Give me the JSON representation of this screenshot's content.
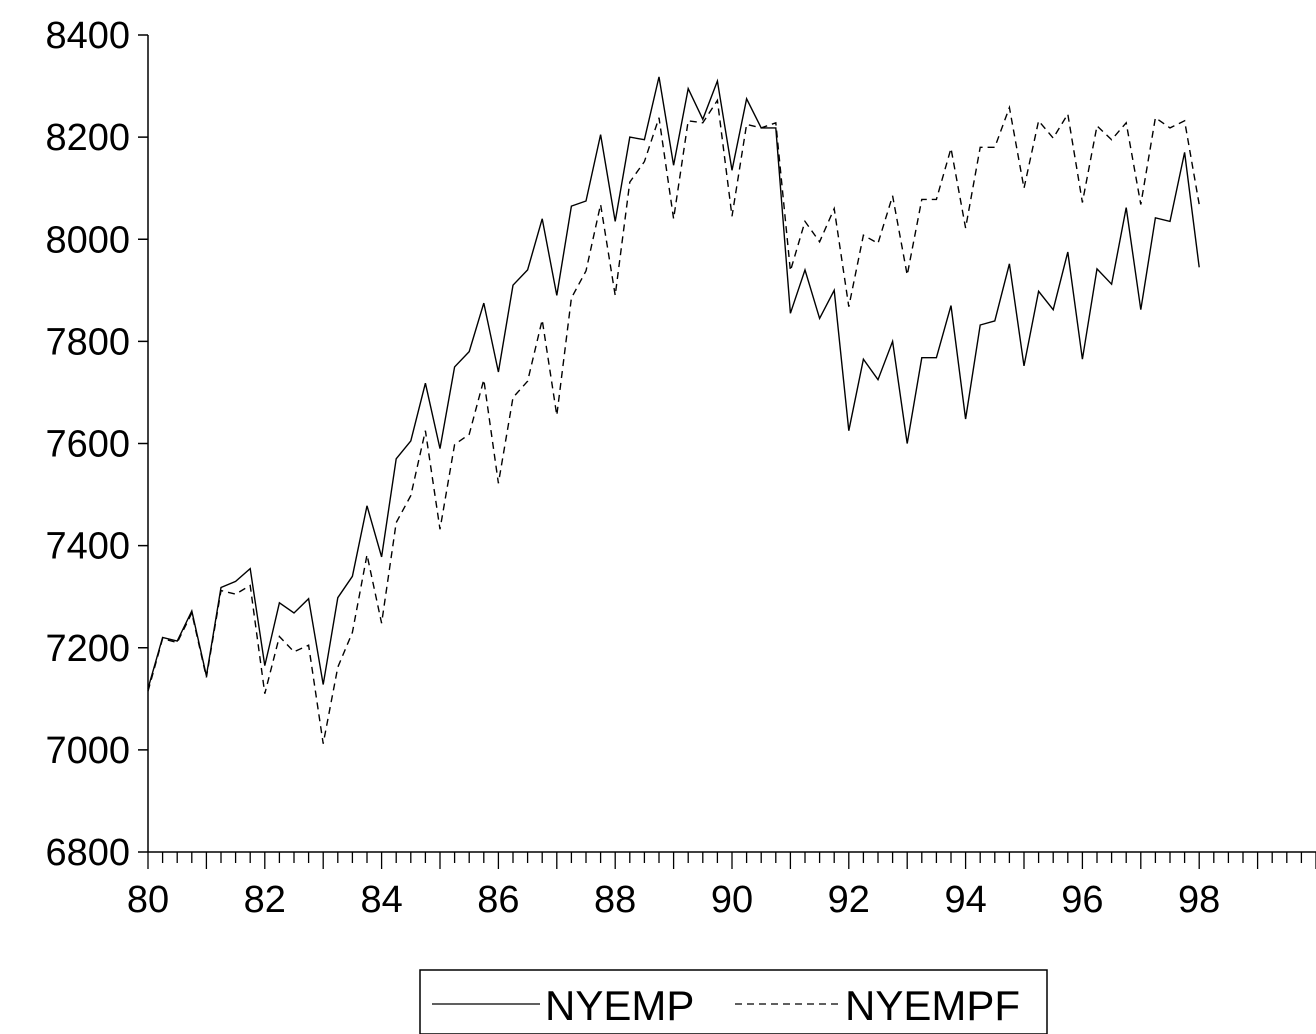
{
  "chart_data": {
    "type": "line",
    "title": "",
    "xlabel": "",
    "ylabel": "",
    "frequency": "quarterly",
    "x_tick_labels": [
      "80",
      "82",
      "84",
      "86",
      "88",
      "90",
      "92",
      "94",
      "96",
      "98"
    ],
    "x_range": [
      80,
      100
    ],
    "y_tick_labels": [
      "6800",
      "7000",
      "7200",
      "7400",
      "7600",
      "7800",
      "8000",
      "8200",
      "8400"
    ],
    "ylim": [
      6800,
      8400
    ],
    "grid": false,
    "legend_position": "bottom-center",
    "series": [
      {
        "name": "NYEMP",
        "line_style": "solid",
        "color": "#000000",
        "x": [
          "1980Q1",
          "1980Q2",
          "1980Q3",
          "1980Q4",
          "1981Q1",
          "1981Q2",
          "1981Q3",
          "1981Q4",
          "1982Q1",
          "1982Q2",
          "1982Q3",
          "1982Q4",
          "1983Q1",
          "1983Q2",
          "1983Q3",
          "1983Q4",
          "1984Q1",
          "1984Q2",
          "1984Q3",
          "1984Q4",
          "1985Q1",
          "1985Q2",
          "1985Q3",
          "1985Q4",
          "1986Q1",
          "1986Q2",
          "1986Q3",
          "1986Q4",
          "1987Q1",
          "1987Q2",
          "1987Q3",
          "1987Q4",
          "1988Q1",
          "1988Q2",
          "1988Q3",
          "1988Q4",
          "1989Q1",
          "1989Q2",
          "1989Q3",
          "1989Q4",
          "1990Q1",
          "1990Q2",
          "1990Q3",
          "1990Q4",
          "1991Q1",
          "1991Q2",
          "1991Q3",
          "1991Q4",
          "1992Q1",
          "1992Q2",
          "1992Q3",
          "1992Q4",
          "1993Q1",
          "1993Q2",
          "1993Q3",
          "1993Q4",
          "1994Q1",
          "1994Q2",
          "1994Q3",
          "1994Q4",
          "1995Q1",
          "1995Q2",
          "1995Q3",
          "1995Q4",
          "1996Q1",
          "1996Q2",
          "1996Q3",
          "1996Q4",
          "1997Q1",
          "1997Q2",
          "1997Q3",
          "1997Q4",
          "1998Q1"
        ],
        "values": [
          7120,
          7220,
          7213,
          7272,
          7145,
          7318,
          7330,
          7355,
          7165,
          7288,
          7268,
          7296,
          7128,
          7298,
          7340,
          7478,
          7378,
          7570,
          7605,
          7718,
          7590,
          7750,
          7780,
          7875,
          7740,
          7910,
          7940,
          8040,
          7890,
          8065,
          8075,
          8205,
          8035,
          8200,
          8195,
          8318,
          8145,
          8295,
          8235,
          8310,
          8135,
          8275,
          8218,
          8218,
          7855,
          7940,
          7845,
          7900,
          7625,
          7765,
          7725,
          7800,
          7600,
          7768,
          7768,
          7870,
          7648,
          7832,
          7840,
          7952,
          7752,
          7898,
          7862,
          7975,
          7765,
          7942,
          7912,
          8062,
          7862,
          8042,
          8035,
          8170,
          7945
        ]
      },
      {
        "name": "NYEMPF",
        "line_style": "dashed",
        "color": "#000000",
        "x": [
          "1980Q1",
          "1980Q2",
          "1980Q3",
          "1980Q4",
          "1981Q1",
          "1981Q2",
          "1981Q3",
          "1981Q4",
          "1982Q1",
          "1982Q2",
          "1982Q3",
          "1982Q4",
          "1983Q1",
          "1983Q2",
          "1983Q3",
          "1983Q4",
          "1984Q1",
          "1984Q2",
          "1984Q3",
          "1984Q4",
          "1985Q1",
          "1985Q2",
          "1985Q3",
          "1985Q4",
          "1986Q1",
          "1986Q2",
          "1986Q3",
          "1986Q4",
          "1987Q1",
          "1987Q2",
          "1987Q3",
          "1987Q4",
          "1988Q1",
          "1988Q2",
          "1988Q3",
          "1988Q4",
          "1989Q1",
          "1989Q2",
          "1989Q3",
          "1989Q4",
          "1990Q1",
          "1990Q2",
          "1990Q3",
          "1990Q4",
          "1991Q1",
          "1991Q2",
          "1991Q3",
          "1991Q4",
          "1992Q1",
          "1992Q2",
          "1992Q3",
          "1992Q4",
          "1993Q1",
          "1993Q2",
          "1993Q3",
          "1993Q4",
          "1994Q1",
          "1994Q2",
          "1994Q3",
          "1994Q4",
          "1995Q1",
          "1995Q2",
          "1995Q3",
          "1995Q4",
          "1996Q1",
          "1996Q2",
          "1996Q3",
          "1996Q4",
          "1997Q1",
          "1997Q2",
          "1997Q3",
          "1997Q4",
          "1998Q1"
        ],
        "values": [
          7115,
          7218,
          7210,
          7268,
          7142,
          7312,
          7305,
          7322,
          7110,
          7222,
          7192,
          7205,
          7012,
          7162,
          7230,
          7382,
          7248,
          7445,
          7498,
          7625,
          7432,
          7598,
          7618,
          7725,
          7522,
          7690,
          7722,
          7842,
          7655,
          7885,
          7938,
          8068,
          7890,
          8112,
          8152,
          8238,
          8040,
          8232,
          8228,
          8272,
          8045,
          8225,
          8218,
          8228,
          7938,
          8035,
          7995,
          8060,
          7868,
          8008,
          7992,
          8085,
          7930,
          8078,
          8078,
          8178,
          8022,
          8180,
          8180,
          8258,
          8100,
          8232,
          8198,
          8245,
          8072,
          8222,
          8195,
          8228,
          8068,
          8238,
          8218,
          8232,
          8068
        ]
      }
    ]
  }
}
